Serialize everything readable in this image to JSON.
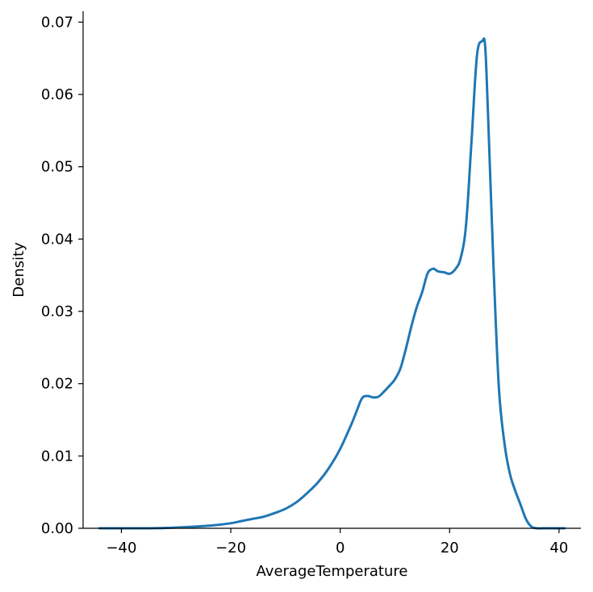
{
  "chart_data": {
    "type": "line",
    "title": "",
    "xlabel": "AverageTemperature",
    "ylabel": "Density",
    "xlim": [
      -47,
      44
    ],
    "ylim": [
      0,
      0.0715
    ],
    "xticks": [
      -40,
      -20,
      0,
      20,
      40
    ],
    "xtick_labels": [
      "−40",
      "−20",
      "0",
      "20",
      "40"
    ],
    "yticks": [
      0,
      0.01,
      0.02,
      0.03,
      0.04,
      0.05,
      0.06,
      0.07
    ],
    "ytick_labels": [
      "0.00",
      "0.01",
      "0.02",
      "0.03",
      "0.04",
      "0.05",
      "0.06",
      "0.07"
    ],
    "grid": false,
    "legend": "none",
    "line_color": "#1f77b4",
    "series": [
      {
        "x": [
          -44,
          -40,
          -35,
          -30,
          -25,
          -22,
          -20,
          -18,
          -16,
          -14,
          -12,
          -10,
          -8,
          -6,
          -4,
          -2,
          0,
          2,
          3,
          4,
          5,
          6,
          7,
          8,
          9,
          10,
          11,
          12,
          13,
          14,
          15,
          16,
          17,
          17.5,
          18,
          19,
          20,
          21,
          22,
          23,
          24,
          25,
          26,
          26.5,
          27,
          28,
          29,
          30,
          31,
          32,
          33,
          34,
          35,
          36,
          37,
          38,
          40,
          41
        ],
        "y": [
          0.0,
          0.0,
          0.0,
          0.0001,
          0.0003,
          0.0005,
          0.0007,
          0.001,
          0.0013,
          0.0016,
          0.0021,
          0.0027,
          0.0036,
          0.0049,
          0.0064,
          0.0084,
          0.011,
          0.0143,
          0.0162,
          0.018,
          0.0183,
          0.0181,
          0.0182,
          0.0189,
          0.0197,
          0.0206,
          0.0221,
          0.0248,
          0.0279,
          0.0306,
          0.0327,
          0.0353,
          0.0359,
          0.0357,
          0.0355,
          0.0354,
          0.0352,
          0.0358,
          0.0373,
          0.0419,
          0.0535,
          0.0654,
          0.0674,
          0.0667,
          0.0578,
          0.0368,
          0.0195,
          0.0119,
          0.0076,
          0.0052,
          0.0032,
          0.0012,
          0.0002,
          0.0,
          0.0,
          0.0,
          0.0,
          0.0
        ]
      }
    ]
  }
}
